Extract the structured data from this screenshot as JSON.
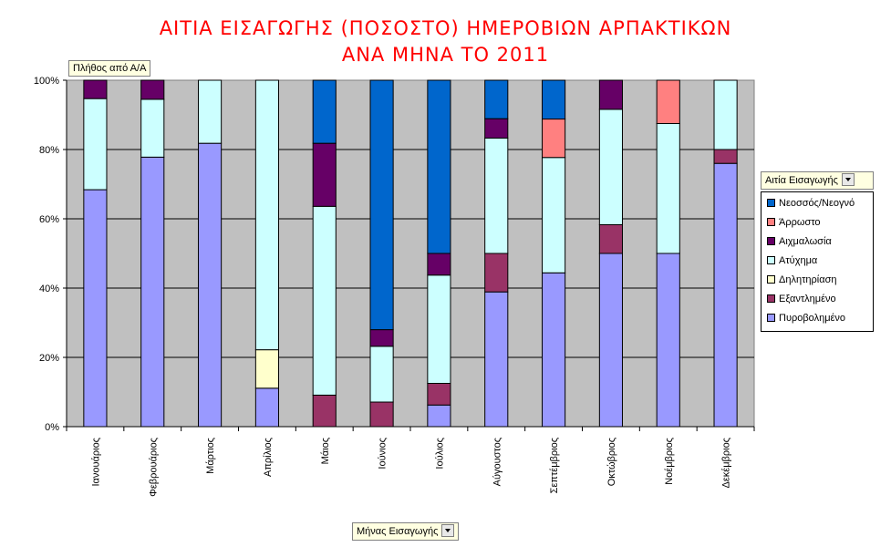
{
  "title": {
    "line1": "ΑΙΤΙΑ ΕΙΣΑΓΩΓΗΣ (ΠΟΣΟΣΤΟ) ΗΜΕΡΟΒΙΩΝ ΑΡΠΑΚΤΙΚΩΝ",
    "line2": "ΑΝΑ ΜΗΝΑ ΤΟ 2011"
  },
  "data_field": "Πλήθος από Α/Α",
  "row_field": "Μήνας Εισαγωγής",
  "legend_title": "Αιτία Εισαγωγής",
  "chart_data": {
    "type": "bar",
    "stacked": "percent",
    "categories": [
      "Ιανουάριος",
      "Φεβρουάριος",
      "Μάρτιος",
      "Απρίλιος",
      "Μάιος",
      "Ιούνιος",
      "Ιούλιος",
      "Αύγουστος",
      "Σεπτέμβριος",
      "Οκτώβριος",
      "Νοέμβριος",
      "Δεκέμβριος"
    ],
    "series": [
      {
        "name": "Πυροβολημένο",
        "color": "#9999ff",
        "values": [
          68.4,
          77.8,
          81.8,
          11.1,
          0,
          0,
          6.25,
          38.9,
          44.4,
          50,
          50,
          76
        ]
      },
      {
        "name": "Εξαντλημένο",
        "color": "#993366",
        "values": [
          0,
          0,
          0,
          0,
          9.1,
          7.1,
          6.25,
          11.1,
          0,
          8.3,
          0,
          4
        ]
      },
      {
        "name": "Δηλητηρίαση",
        "color": "#ffffcc",
        "values": [
          0,
          0,
          0,
          11.1,
          0,
          0,
          0,
          0,
          0,
          0,
          0,
          0
        ]
      },
      {
        "name": "Ατύχημα",
        "color": "#ccffff",
        "values": [
          26.3,
          16.7,
          18.2,
          77.8,
          54.5,
          16.1,
          31.25,
          33.3,
          33.3,
          33.3,
          37.5,
          20
        ]
      },
      {
        "name": "Αιχμαλωσία",
        "color": "#660066",
        "values": [
          5.3,
          5.5,
          0,
          0,
          18.2,
          4.8,
          6.25,
          5.6,
          0,
          8.4,
          0,
          0
        ]
      },
      {
        "name": "Άρρωστο",
        "color": "#ff8080",
        "values": [
          0,
          0,
          0,
          0,
          0,
          0,
          0,
          0,
          11.1,
          0,
          12.5,
          0
        ]
      },
      {
        "name": "Νεοσσός/Νεογνό",
        "color": "#0066cc",
        "values": [
          0,
          0,
          0,
          0,
          18.2,
          72,
          50,
          11.1,
          11.2,
          0,
          0,
          0
        ]
      }
    ],
    "ylim": [
      0,
      100
    ],
    "yticks": [
      "0%",
      "20%",
      "40%",
      "60%",
      "80%",
      "100%"
    ],
    "grid": true,
    "legend_position": "right",
    "plot_background": "#c0c0c0"
  }
}
